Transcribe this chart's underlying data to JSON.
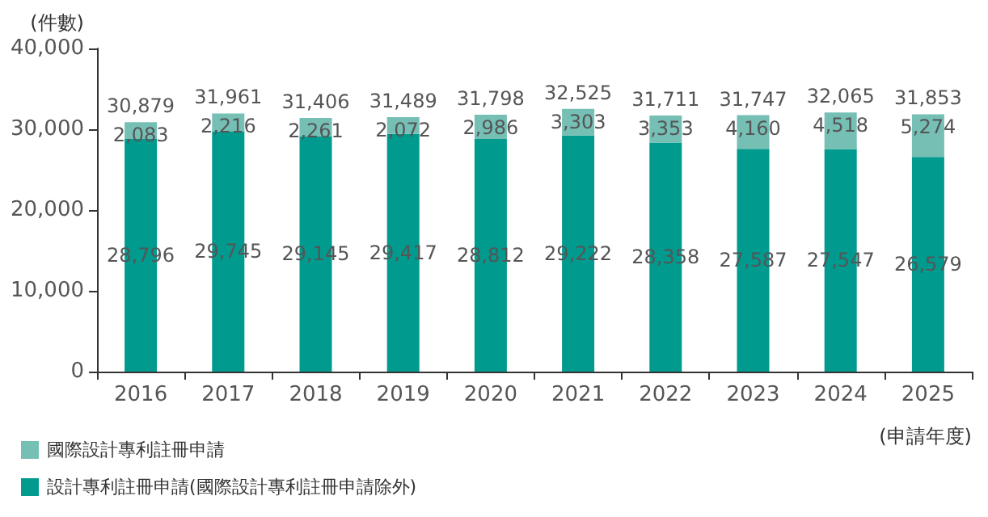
{
  "chart_data": {
    "type": "bar",
    "stacked": true,
    "ylabel": "(件數)",
    "xlabel": "(申請年度)",
    "categories": [
      "2016",
      "2017",
      "2018",
      "2019",
      "2020",
      "2021",
      "2022",
      "2023",
      "2024",
      "2025"
    ],
    "series": [
      {
        "name": "設計專利註冊申請(國際設計專利註冊申請除外)",
        "color": "#009a8e",
        "values": [
          28796,
          29745,
          29145,
          29417,
          28812,
          29222,
          28358,
          27587,
          27547,
          26579
        ],
        "value_labels": [
          "28,796",
          "29,745",
          "29,145",
          "29,417",
          "28,812",
          "29,222",
          "28,358",
          "27,587",
          "27,547",
          "26,579"
        ]
      },
      {
        "name": "國際設計專利註冊申請",
        "color": "#76bfb5",
        "values": [
          2083,
          2216,
          2261,
          2072,
          2986,
          3303,
          3353,
          4160,
          4518,
          5274
        ],
        "value_labels": [
          "2,083",
          "2,216",
          "2,261",
          "2,072",
          "2,986",
          "3,303",
          "3,353",
          "4,160",
          "4,518",
          "5,274"
        ]
      }
    ],
    "totals": [
      "30,879",
      "31,961",
      "31,406",
      "31,489",
      "31,798",
      "32,525",
      "31,711",
      "31,747",
      "32,065",
      "31,853"
    ],
    "ylim": [
      0,
      40000
    ],
    "yticks": [
      0,
      {
        "value": 10000,
        "label": "10,000"
      },
      {
        "value": 20000,
        "label": "20,000"
      },
      {
        "value": 30000,
        "label": "30,000"
      },
      {
        "value": 40000,
        "label": "40,000"
      }
    ],
    "grid": false,
    "legend": "bottom left"
  }
}
